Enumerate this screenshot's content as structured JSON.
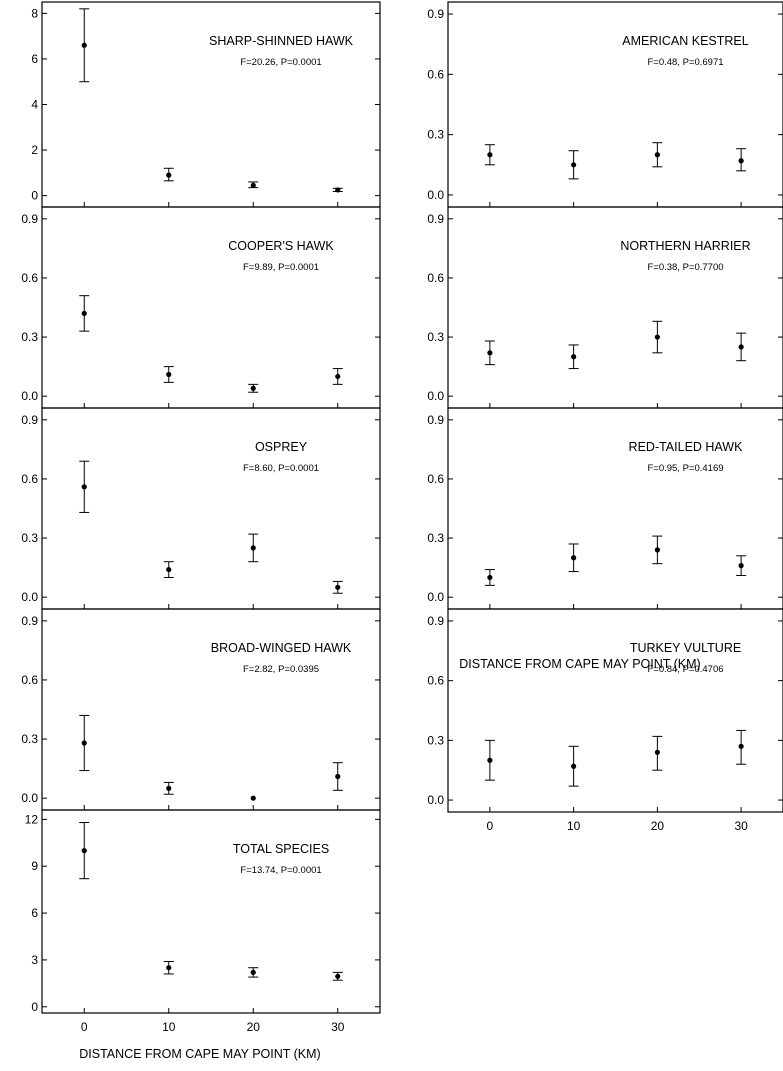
{
  "chart_data": [
    {
      "type": "scatter",
      "title": "SHARP-SHINNED HAWK",
      "subtitle": "F=20.26, P=0.0001",
      "x": [
        0,
        10,
        20,
        30
      ],
      "y": [
        6.6,
        0.9,
        0.45,
        0.25
      ],
      "y_err_low": [
        5.0,
        0.65,
        0.35,
        0.18
      ],
      "y_err_high": [
        8.2,
        1.2,
        0.6,
        0.32
      ],
      "xlim": [
        -5,
        35
      ],
      "ylim": [
        -0.5,
        8.5
      ],
      "yticks": [
        0,
        2,
        4,
        6,
        8
      ],
      "ytick_labels": [
        "0",
        "2",
        "4",
        "6",
        "8"
      ]
    },
    {
      "type": "scatter",
      "title": "COOPER'S HAWK",
      "subtitle": "F=9.89, P=0.0001",
      "x": [
        0,
        10,
        20,
        30
      ],
      "y": [
        0.42,
        0.11,
        0.04,
        0.1
      ],
      "y_err_low": [
        0.33,
        0.07,
        0.02,
        0.06
      ],
      "y_err_high": [
        0.51,
        0.15,
        0.06,
        0.14
      ],
      "xlim": [
        -5,
        35
      ],
      "ylim": [
        -0.06,
        0.96
      ],
      "yticks": [
        0,
        0.3,
        0.6,
        0.9
      ],
      "ytick_labels": [
        "0.0",
        "0.3",
        "0.6",
        "0.9"
      ]
    },
    {
      "type": "scatter",
      "title": "OSPREY",
      "subtitle": "F=8.60, P=0.0001",
      "x": [
        0,
        10,
        20,
        30
      ],
      "y": [
        0.56,
        0.14,
        0.25,
        0.05
      ],
      "y_err_low": [
        0.43,
        0.1,
        0.18,
        0.02
      ],
      "y_err_high": [
        0.69,
        0.18,
        0.32,
        0.08
      ],
      "xlim": [
        -5,
        35
      ],
      "ylim": [
        -0.06,
        0.96
      ],
      "yticks": [
        0,
        0.3,
        0.6,
        0.9
      ],
      "ytick_labels": [
        "0.0",
        "0.3",
        "0.6",
        "0.9"
      ]
    },
    {
      "type": "scatter",
      "title": "BROAD-WINGED HAWK",
      "subtitle": "F=2.82, P=0.0395",
      "x": [
        0,
        10,
        20,
        30
      ],
      "y": [
        0.28,
        0.05,
        0.0,
        0.11
      ],
      "y_err_low": [
        0.14,
        0.02,
        0.0,
        0.04
      ],
      "y_err_high": [
        0.42,
        0.08,
        0.0,
        0.18
      ],
      "xlim": [
        -5,
        35
      ],
      "ylim": [
        -0.06,
        0.96
      ],
      "yticks": [
        0,
        0.3,
        0.6,
        0.9
      ],
      "ytick_labels": [
        "0.0",
        "0.3",
        "0.6",
        "0.9"
      ]
    },
    {
      "type": "scatter",
      "title": "TOTAL SPECIES",
      "subtitle": "F=13.74, P=0.0001",
      "x": [
        0,
        10,
        20,
        30
      ],
      "y": [
        10.0,
        2.5,
        2.2,
        1.95
      ],
      "y_err_low": [
        8.2,
        2.1,
        1.9,
        1.7
      ],
      "y_err_high": [
        11.8,
        2.9,
        2.5,
        2.2
      ],
      "xlim": [
        -5,
        35
      ],
      "ylim": [
        -0.4,
        12.6
      ],
      "yticks": [
        0,
        3,
        6,
        9,
        12
      ],
      "ytick_labels": [
        "0",
        "3",
        "6",
        "9",
        "12"
      ],
      "xticks": [
        0,
        10,
        20,
        30
      ],
      "xtick_labels": [
        "0",
        "10",
        "20",
        "30"
      ],
      "xlabel": "DISTANCE FROM CAPE MAY POINT  (KM)"
    },
    {
      "type": "scatter",
      "title": "AMERICAN KESTREL",
      "subtitle": "F=0.48, P=0.6971",
      "x": [
        0,
        10,
        20,
        30
      ],
      "y": [
        0.2,
        0.15,
        0.2,
        0.17
      ],
      "y_err_low": [
        0.15,
        0.08,
        0.14,
        0.12
      ],
      "y_err_high": [
        0.25,
        0.22,
        0.26,
        0.23
      ],
      "xlim": [
        -5,
        35
      ],
      "ylim": [
        -0.06,
        0.96
      ],
      "yticks": [
        0,
        0.3,
        0.6,
        0.9
      ],
      "ytick_labels": [
        "0.0",
        "0.3",
        "0.6",
        "0.9"
      ]
    },
    {
      "type": "scatter",
      "title": "NORTHERN HARRIER",
      "subtitle": "F=0.38, P=0.7700",
      "x": [
        0,
        10,
        20,
        30
      ],
      "y": [
        0.22,
        0.2,
        0.3,
        0.25
      ],
      "y_err_low": [
        0.16,
        0.14,
        0.22,
        0.18
      ],
      "y_err_high": [
        0.28,
        0.26,
        0.38,
        0.32
      ],
      "xlim": [
        -5,
        35
      ],
      "ylim": [
        -0.06,
        0.96
      ],
      "yticks": [
        0,
        0.3,
        0.6,
        0.9
      ],
      "ytick_labels": [
        "0.0",
        "0.3",
        "0.6",
        "0.9"
      ]
    },
    {
      "type": "scatter",
      "title": "RED-TAILED HAWK",
      "subtitle": "F=0.95, P=0.4169",
      "x": [
        0,
        10,
        20,
        30
      ],
      "y": [
        0.1,
        0.2,
        0.24,
        0.16
      ],
      "y_err_low": [
        0.06,
        0.13,
        0.17,
        0.11
      ],
      "y_err_high": [
        0.14,
        0.27,
        0.31,
        0.21
      ],
      "xlim": [
        -5,
        35
      ],
      "ylim": [
        -0.06,
        0.96
      ],
      "yticks": [
        0,
        0.3,
        0.6,
        0.9
      ],
      "ytick_labels": [
        "0.0",
        "0.3",
        "0.6",
        "0.9"
      ]
    },
    {
      "type": "scatter",
      "title": "TURKEY VULTURE",
      "subtitle": "F=0.84, P=0.4706",
      "x": [
        0,
        10,
        20,
        30
      ],
      "y": [
        0.2,
        0.17,
        0.24,
        0.27
      ],
      "y_err_low": [
        0.1,
        0.07,
        0.15,
        0.18
      ],
      "y_err_high": [
        0.3,
        0.27,
        0.32,
        0.35
      ],
      "xlim": [
        -5,
        35
      ],
      "ylim": [
        -0.06,
        0.96
      ],
      "yticks": [
        0,
        0.3,
        0.6,
        0.9
      ],
      "ytick_labels": [
        "0.0",
        "0.3",
        "0.6",
        "0.9"
      ],
      "xticks": [
        0,
        10,
        20,
        30
      ],
      "xtick_labels": [
        "0",
        "10",
        "20",
        "30"
      ],
      "xlabel": "DISTANCE FROM CAPE MAY POINT  (KM)"
    }
  ]
}
